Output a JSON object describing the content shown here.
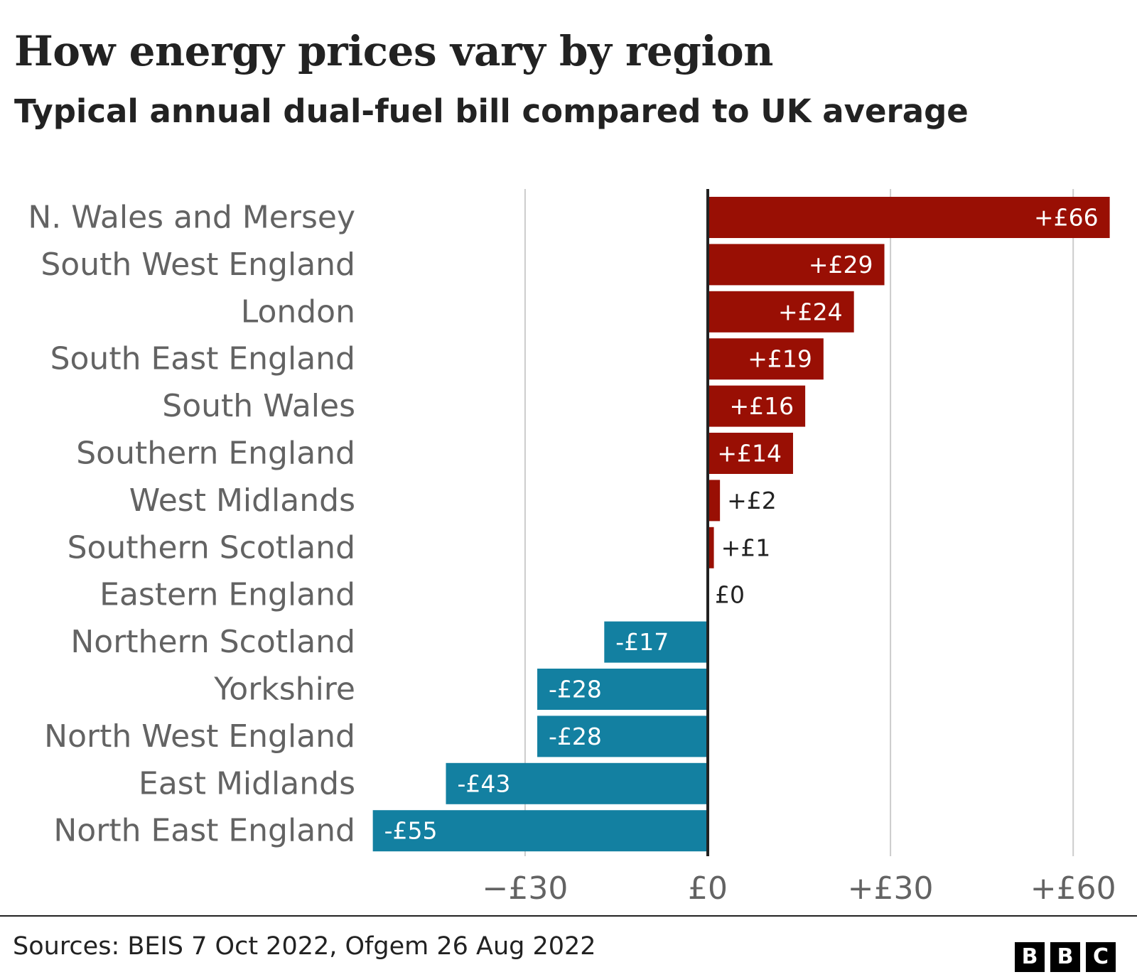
{
  "header": {
    "title": "How energy prices vary by region",
    "subtitle": "Typical annual dual-fuel bill compared to UK average"
  },
  "footer": {
    "source": "Sources: BEIS 7 Oct 2022, Ofgem 26 Aug 2022",
    "logo_letters": [
      "B",
      "B",
      "C"
    ]
  },
  "colors": {
    "positive": "#990f04",
    "negative": "#1380a1",
    "grid": "#cccccc",
    "zero_line": "#222222",
    "label_text": "#636363"
  },
  "chart_data": {
    "type": "bar",
    "orientation": "horizontal",
    "title": "How energy prices vary by region",
    "subtitle": "Typical annual dual-fuel bill compared to UK average",
    "categories": [
      "N. Wales and Mersey",
      "South West England",
      "London",
      "South East England",
      "South Wales",
      "Southern England",
      "West Midlands",
      "Southern Scotland",
      "Eastern England",
      "Northern Scotland",
      "Yorkshire",
      "North West England",
      "East Midlands",
      "North East England"
    ],
    "values": [
      66,
      29,
      24,
      19,
      16,
      14,
      2,
      1,
      0,
      -17,
      -28,
      -28,
      -43,
      -55
    ],
    "value_labels": [
      "+£66",
      "+£29",
      "+£24",
      "+£19",
      "+£16",
      "+£14",
      "+£2",
      "+£1",
      "£0",
      "-£17",
      "-£28",
      "-£28",
      "-£43",
      "-£55"
    ],
    "x_ticks": [
      -30,
      0,
      30,
      60
    ],
    "x_tick_labels": [
      "−£30",
      "£0",
      "+£30",
      "+£60"
    ],
    "xlim": [
      -55,
      66
    ],
    "grid": true,
    "xlabel": "",
    "ylabel": ""
  }
}
